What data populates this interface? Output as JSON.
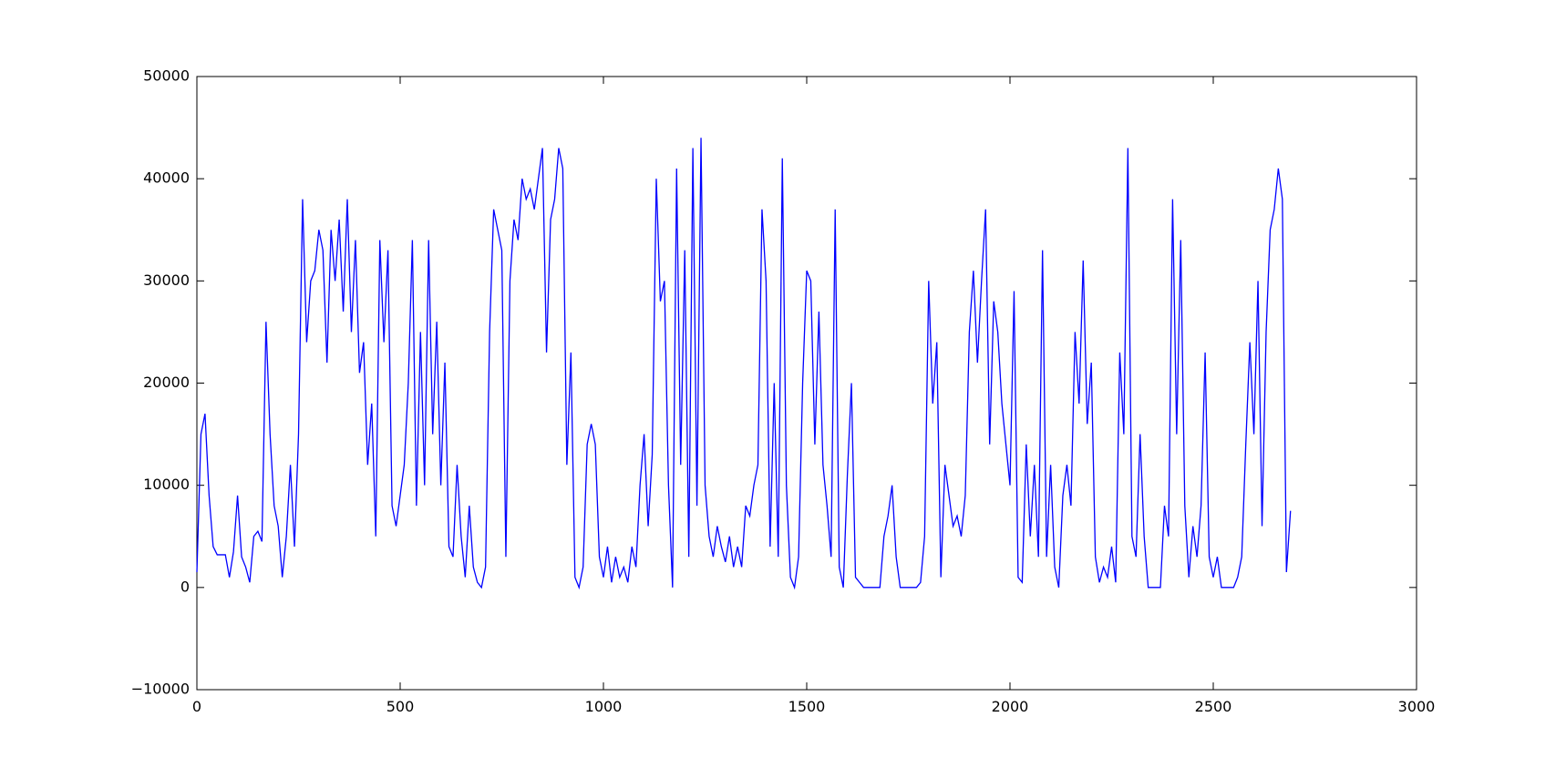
{
  "chart_data": {
    "type": "line",
    "color": "#0000ff",
    "x": [
      0,
      10,
      20,
      30,
      40,
      50,
      60,
      70,
      80,
      90,
      100,
      110,
      120,
      130,
      140,
      150,
      160,
      170,
      180,
      190,
      200,
      210,
      220,
      230,
      240,
      250,
      260,
      270,
      280,
      290,
      300,
      310,
      320,
      330,
      340,
      350,
      360,
      370,
      380,
      390,
      400,
      410,
      420,
      430,
      440,
      450,
      460,
      470,
      480,
      490,
      500,
      510,
      520,
      530,
      540,
      550,
      560,
      570,
      580,
      590,
      600,
      610,
      620,
      630,
      640,
      650,
      660,
      670,
      680,
      690,
      700,
      710,
      720,
      730,
      740,
      750,
      760,
      770,
      780,
      790,
      800,
      810,
      820,
      830,
      840,
      850,
      860,
      870,
      880,
      890,
      900,
      910,
      920,
      930,
      940,
      950,
      960,
      970,
      980,
      990,
      1000,
      1010,
      1020,
      1030,
      1040,
      1050,
      1060,
      1070,
      1080,
      1090,
      1100,
      1110,
      1120,
      1130,
      1140,
      1150,
      1160,
      1170,
      1180,
      1190,
      1200,
      1210,
      1220,
      1230,
      1240,
      1250,
      1260,
      1270,
      1280,
      1290,
      1300,
      1310,
      1320,
      1330,
      1340,
      1350,
      1360,
      1370,
      1380,
      1390,
      1400,
      1410,
      1420,
      1430,
      1440,
      1450,
      1460,
      1470,
      1480,
      1490,
      1500,
      1510,
      1520,
      1530,
      1540,
      1550,
      1560,
      1570,
      1580,
      1590,
      1600,
      1610,
      1620,
      1630,
      1640,
      1650,
      1660,
      1670,
      1680,
      1690,
      1700,
      1710,
      1720,
      1730,
      1740,
      1750,
      1760,
      1770,
      1780,
      1790,
      1800,
      1810,
      1820,
      1830,
      1840,
      1850,
      1860,
      1870,
      1880,
      1890,
      1900,
      1910,
      1920,
      1930,
      1940,
      1950,
      1960,
      1970,
      1980,
      1990,
      2000,
      2010,
      2020,
      2030,
      2040,
      2050,
      2060,
      2070,
      2080,
      2090,
      2100,
      2110,
      2120,
      2130,
      2140,
      2150,
      2160,
      2170,
      2180,
      2190,
      2200,
      2210,
      2220,
      2230,
      2240,
      2250,
      2260,
      2270,
      2280,
      2290,
      2300,
      2310,
      2320,
      2330,
      2340,
      2350,
      2360,
      2370,
      2380,
      2390,
      2400,
      2410,
      2420,
      2430,
      2440,
      2450,
      2460,
      2470,
      2480,
      2490,
      2500,
      2510,
      2520,
      2530,
      2540,
      2550,
      2560,
      2570,
      2580,
      2590,
      2600,
      2610,
      2620,
      2630,
      2640,
      2650,
      2660,
      2670,
      2680,
      2690
    ],
    "values": [
      1500,
      15000,
      17000,
      9000,
      4000,
      3200,
      3200,
      3200,
      1000,
      3500,
      9000,
      3000,
      2000,
      500,
      5000,
      5500,
      4500,
      26000,
      15000,
      8000,
      6000,
      1000,
      5000,
      12000,
      4000,
      15000,
      38000,
      24000,
      30000,
      31000,
      35000,
      33000,
      22000,
      35000,
      30000,
      36000,
      27000,
      38000,
      25000,
      34000,
      21000,
      24000,
      12000,
      18000,
      5000,
      34000,
      24000,
      33000,
      8000,
      6000,
      9000,
      12000,
      20000,
      34000,
      8000,
      25000,
      10000,
      34000,
      15000,
      26000,
      10000,
      22000,
      4000,
      3000,
      12000,
      5000,
      1000,
      8000,
      2000,
      500,
      0,
      2000,
      25000,
      37000,
      35000,
      33000,
      3000,
      30000,
      36000,
      34000,
      40000,
      38000,
      39000,
      37000,
      40000,
      43000,
      23000,
      36000,
      38000,
      43000,
      41000,
      12000,
      23000,
      1000,
      0,
      2000,
      14000,
      16000,
      14000,
      3000,
      1000,
      4000,
      500,
      3000,
      1000,
      2000,
      500,
      4000,
      2000,
      10000,
      15000,
      6000,
      13000,
      40000,
      28000,
      30000,
      10000,
      0,
      41000,
      12000,
      33000,
      3000,
      43000,
      8000,
      44000,
      10000,
      5000,
      3000,
      6000,
      4000,
      2500,
      5000,
      2000,
      4000,
      2000,
      8000,
      7000,
      10000,
      12000,
      37000,
      30000,
      4000,
      20000,
      3000,
      42000,
      10000,
      1000,
      0,
      3000,
      20000,
      31000,
      30000,
      14000,
      27000,
      12000,
      8000,
      3000,
      37000,
      2000,
      0,
      11000,
      20000,
      1000,
      500,
      0,
      0,
      0,
      0,
      0,
      5000,
      7000,
      10000,
      3000,
      0,
      0,
      0,
      0,
      0,
      500,
      5000,
      30000,
      18000,
      24000,
      1000,
      12000,
      9000,
      6000,
      7000,
      5000,
      9000,
      25000,
      31000,
      22000,
      30000,
      37000,
      14000,
      28000,
      25000,
      18000,
      14000,
      10000,
      29000,
      1000,
      500,
      14000,
      5000,
      12000,
      3000,
      33000,
      3000,
      12000,
      2000,
      0,
      9000,
      12000,
      8000,
      25000,
      18000,
      32000,
      16000,
      22000,
      3000,
      500,
      2000,
      1000,
      4000,
      500,
      23000,
      15000,
      43000,
      5000,
      3000,
      15000,
      5000,
      0,
      0,
      0,
      0,
      8000,
      5000,
      38000,
      15000,
      34000,
      8000,
      1000,
      6000,
      3000,
      8000,
      23000,
      3000,
      1000,
      3000,
      0,
      0,
      0,
      0,
      1000,
      3000,
      14000,
      24000,
      15000,
      30000,
      6000,
      25000,
      35000,
      37000,
      41000,
      38000,
      1500,
      7500
    ],
    "xlim": [
      0,
      3000
    ],
    "xticks": [
      0,
      500,
      1000,
      1500,
      2000,
      2500,
      3000
    ],
    "ylim": [
      -10000,
      50000
    ],
    "yticks": [
      {
        "value": -10000,
        "label": "−10000"
      },
      0,
      10000,
      20000,
      30000,
      40000,
      50000
    ],
    "grid": false
  }
}
